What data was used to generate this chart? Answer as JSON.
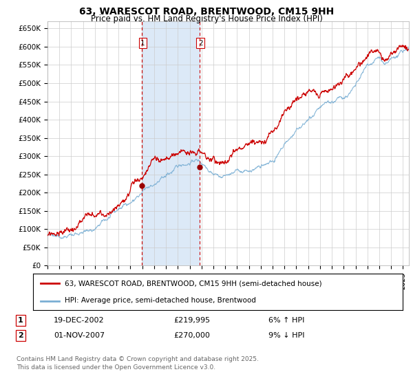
{
  "title": "63, WARESCOT ROAD, BRENTWOOD, CM15 9HH",
  "subtitle": "Price paid vs. HM Land Registry's House Price Index (HPI)",
  "ylabel_ticks": [
    "£0",
    "£50K",
    "£100K",
    "£150K",
    "£200K",
    "£250K",
    "£300K",
    "£350K",
    "£400K",
    "£450K",
    "£500K",
    "£550K",
    "£600K",
    "£650K"
  ],
  "ytick_values": [
    0,
    50000,
    100000,
    150000,
    200000,
    250000,
    300000,
    350000,
    400000,
    450000,
    500000,
    550000,
    600000,
    650000
  ],
  "ylim": [
    0,
    670000
  ],
  "xlim_start": 1995.0,
  "xlim_end": 2025.5,
  "sale1_date": 2002.97,
  "sale1_price": 219995,
  "sale1_label": "1",
  "sale2_date": 2007.84,
  "sale2_price": 270000,
  "sale2_label": "2",
  "shade_color": "#dce9f7",
  "vline_color": "#cc0000",
  "line_sold_color": "#cc0000",
  "line_hpi_color": "#7aafd4",
  "dot_color": "#990000",
  "legend_sold": "63, WARESCOT ROAD, BRENTWOOD, CM15 9HH (semi-detached house)",
  "legend_hpi": "HPI: Average price, semi-detached house, Brentwood",
  "table_row1": [
    "1",
    "19-DEC-2002",
    "£219,995",
    "6% ↑ HPI"
  ],
  "table_row2": [
    "2",
    "01-NOV-2007",
    "£270,000",
    "9% ↓ HPI"
  ],
  "footer": "Contains HM Land Registry data © Crown copyright and database right 2025.\nThis data is licensed under the Open Government Licence v3.0.",
  "background_color": "#ffffff",
  "grid_color": "#cccccc",
  "title_fontsize": 10,
  "subtitle_fontsize": 8.5,
  "tick_fontsize": 7.5
}
